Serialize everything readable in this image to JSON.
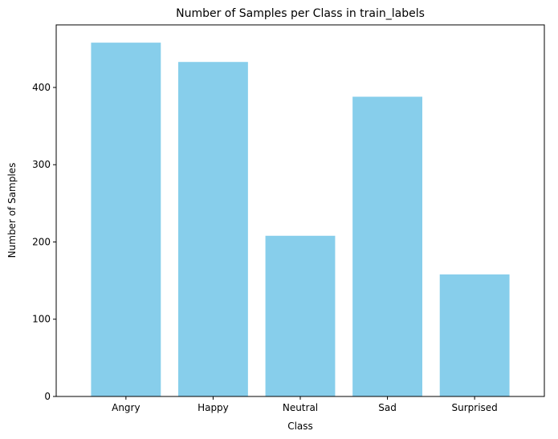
{
  "chart_data": {
    "type": "bar",
    "title": "Number of Samples per Class in train_labels",
    "xlabel": "Class",
    "ylabel": "Number of Samples",
    "categories": [
      "Angry",
      "Happy",
      "Neutral",
      "Sad",
      "Surprised"
    ],
    "values": [
      458,
      433,
      208,
      388,
      158
    ],
    "ylim": [
      0,
      481
    ],
    "yticks": [
      0,
      100,
      200,
      300,
      400
    ],
    "bar_color": "#87CEEB",
    "grid": false,
    "legend": "none"
  }
}
